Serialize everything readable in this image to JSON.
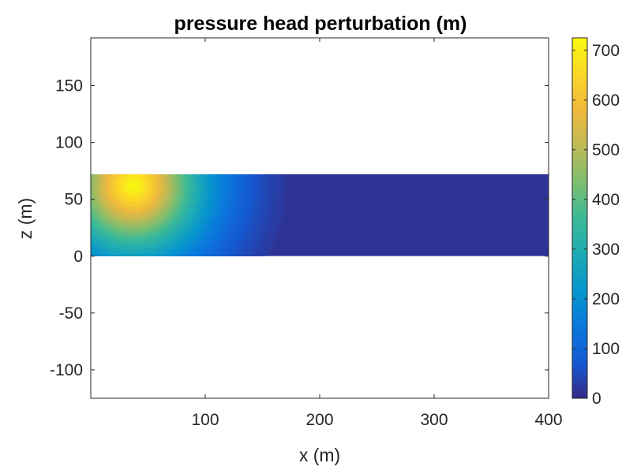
{
  "chart_data": {
    "type": "heatmap",
    "title": "pressure head perturbation (m)",
    "xlabel": "x (m)",
    "ylabel": "z (m)",
    "xlim": [
      0,
      400
    ],
    "ylim": [
      -125,
      192
    ],
    "x_ticks": [
      100,
      200,
      300,
      400
    ],
    "y_ticks": [
      -100,
      -50,
      0,
      50,
      100,
      150
    ],
    "grid": false,
    "field": {
      "x_range": [
        0,
        400
      ],
      "z_range": [
        0,
        72
      ],
      "peak": {
        "x": 37,
        "z": 62,
        "value": 720
      },
      "description_values": {
        "max": 720,
        "min": 0
      }
    },
    "colorbar": {
      "colormap": "parula",
      "clim": [
        0,
        725
      ],
      "ticks": [
        0,
        100,
        200,
        300,
        400,
        500,
        600,
        700
      ]
    }
  }
}
